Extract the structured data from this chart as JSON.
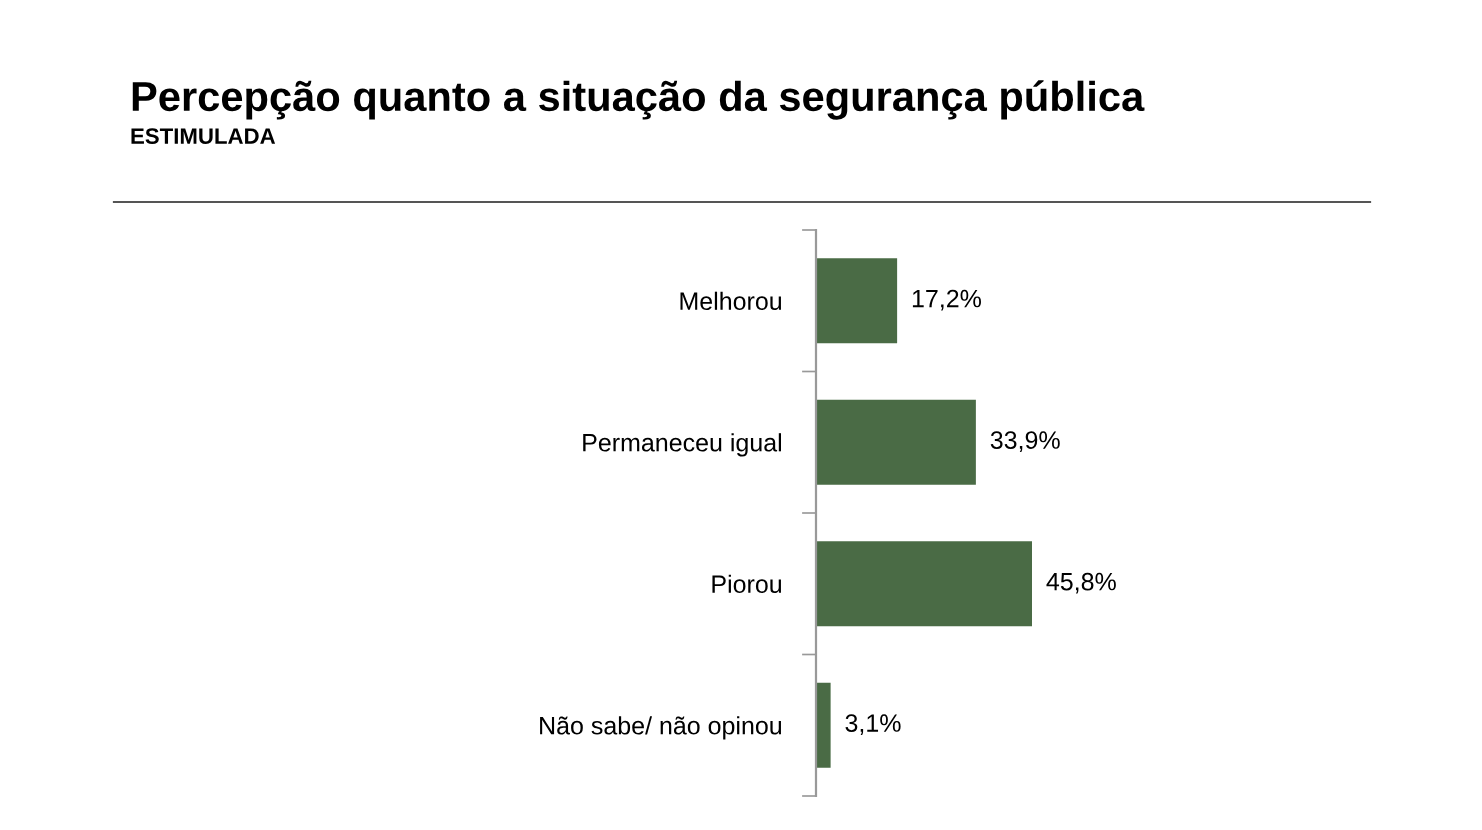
{
  "chart_data": {
    "type": "bar",
    "orientation": "horizontal",
    "title": "Percepção quanto a situação da segurança pública",
    "subtitle": "ESTIMULADA",
    "categories": [
      "Melhorou",
      "Permaneceu igual",
      "Piorou",
      "Não sabe/ não opinou"
    ],
    "values": [
      17.2,
      33.9,
      45.8,
      3.1
    ],
    "value_labels": [
      "17,2%",
      "33,9%",
      "45,8%",
      "3,1%"
    ],
    "color": "#4a6b45",
    "grid": false,
    "legend": false
  }
}
